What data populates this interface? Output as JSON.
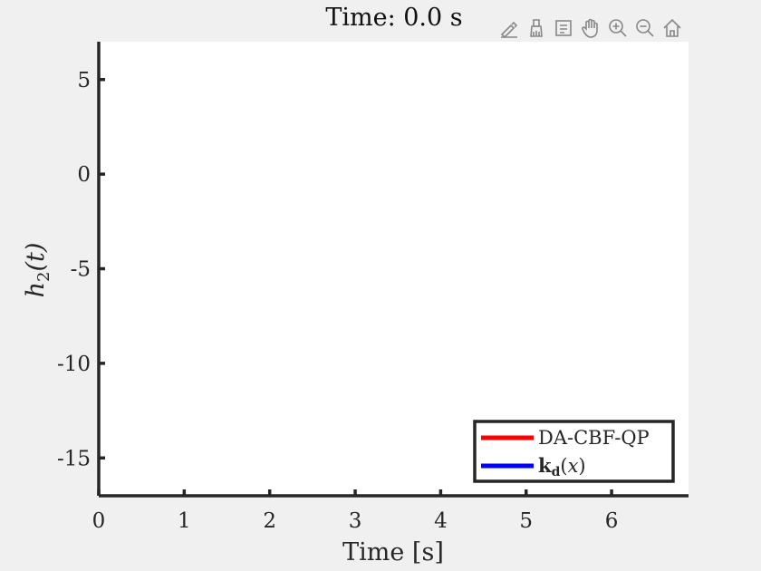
{
  "figure": {
    "title": "Time: 0.0 s",
    "toolbar": [
      {
        "name": "edit-plot-icon"
      },
      {
        "name": "brush-icon"
      },
      {
        "name": "data-tips-icon"
      },
      {
        "name": "pan-icon"
      },
      {
        "name": "zoom-in-icon"
      },
      {
        "name": "zoom-out-icon"
      },
      {
        "name": "home-icon"
      }
    ]
  },
  "chart_data": {
    "type": "line",
    "title": "Time: 0.0 s",
    "xlabel": "Time [s]",
    "ylabel": "h_2(t)",
    "xlim": [
      0,
      6.9
    ],
    "ylim": [
      -17,
      7
    ],
    "xticks": [
      0,
      1,
      2,
      3,
      4,
      5,
      6
    ],
    "yticks": [
      5,
      0,
      -5,
      -10,
      -15
    ],
    "ytick_labels": [
      "5",
      "0",
      "-5",
      "-10",
      "-15"
    ],
    "grid": false,
    "legend_position": "bottom-right",
    "series": [
      {
        "name": "DA-CBF-QP",
        "color": "#ff0000",
        "x": [],
        "y": []
      },
      {
        "name": "k_d(x)",
        "color": "#0000ff",
        "x": [],
        "y": []
      }
    ]
  }
}
